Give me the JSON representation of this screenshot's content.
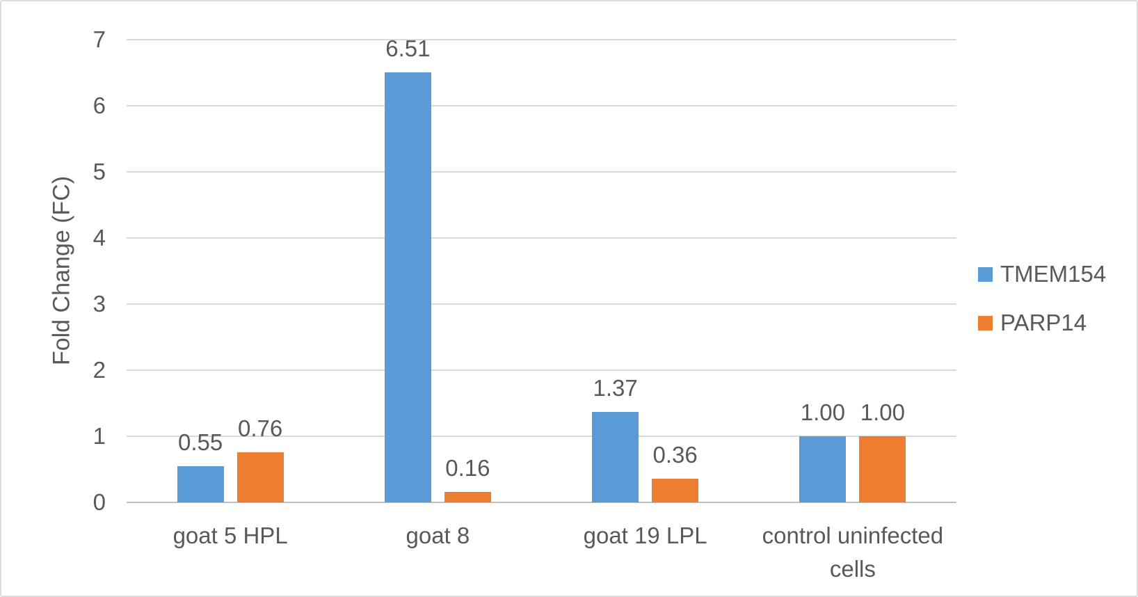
{
  "chart_data": {
    "type": "bar",
    "title": "",
    "xlabel": "",
    "ylabel": "Fold Change (FC)",
    "categories": [
      "goat 5 HPL",
      "goat 8",
      "goat 19 LPL",
      "control uninfected cells"
    ],
    "series": [
      {
        "name": "TMEM154",
        "color": "#5B9BD5",
        "values": [
          0.55,
          6.51,
          1.37,
          1.0
        ],
        "data_labels": [
          "0.55",
          "6.51",
          "1.37",
          "1.00"
        ]
      },
      {
        "name": "PARP14",
        "color": "#ED7D31",
        "values": [
          0.76,
          0.16,
          0.36,
          1.0
        ],
        "data_labels": [
          "0.76",
          "0.16",
          "0.36",
          "1.00"
        ]
      }
    ],
    "ylim": [
      0,
      7
    ],
    "ytick_labels": [
      "0",
      "1",
      "2",
      "3",
      "4",
      "5",
      "6",
      "7"
    ],
    "grid": true,
    "legend_position": "right",
    "styles": {
      "text_color": "#595959",
      "gridline_color": "#d9d9d9",
      "axis_line_color": "#bfbfbf",
      "background_color": "#ffffff",
      "border_color": "#dcdcdc"
    }
  }
}
